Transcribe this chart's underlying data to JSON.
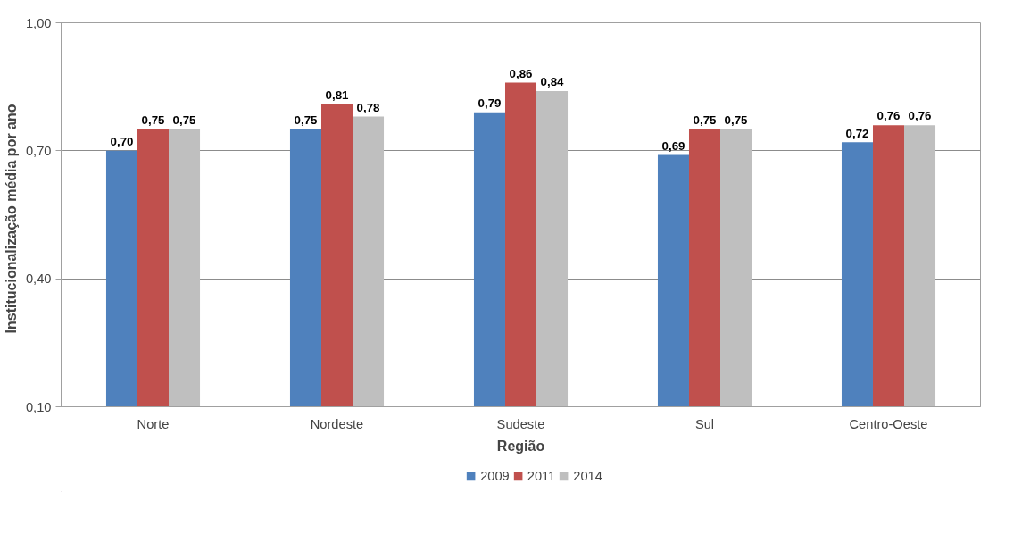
{
  "chart_data": {
    "type": "bar",
    "xlabel": "Região",
    "ylabel": "Institucionalização   média por ano",
    "categories": [
      "Norte",
      "Nordeste",
      "Sudeste",
      "Sul",
      "Centro-Oeste"
    ],
    "series": [
      {
        "name": "2009",
        "color": "#4f81bd",
        "values": [
          0.7,
          0.75,
          0.79,
          0.69,
          0.72
        ],
        "value_labels": [
          "0,70",
          "0,75",
          "0,79",
          "0,69",
          "0,72"
        ]
      },
      {
        "name": "2011",
        "color": "#c0504d",
        "values": [
          0.75,
          0.81,
          0.86,
          0.75,
          0.76
        ],
        "value_labels": [
          "0,75",
          "0,81",
          "0,86",
          "0,75",
          "0,76"
        ]
      },
      {
        "name": "2014",
        "color": "#bfbfbf",
        "values": [
          0.75,
          0.78,
          0.84,
          0.75,
          0.76
        ],
        "value_labels": [
          "0,75",
          "0,78",
          "0,84",
          "0,75",
          "0,76"
        ]
      }
    ],
    "ylim": [
      0.1,
      1.0
    ],
    "yticks": [
      {
        "value": 0.1,
        "label": "0,10"
      },
      {
        "value": 0.4,
        "label": "0,40"
      },
      {
        "value": 0.7,
        "label": "0,70"
      },
      {
        "value": 1.0,
        "label": "1,00"
      }
    ],
    "grid": "y",
    "legend": "bottom"
  }
}
